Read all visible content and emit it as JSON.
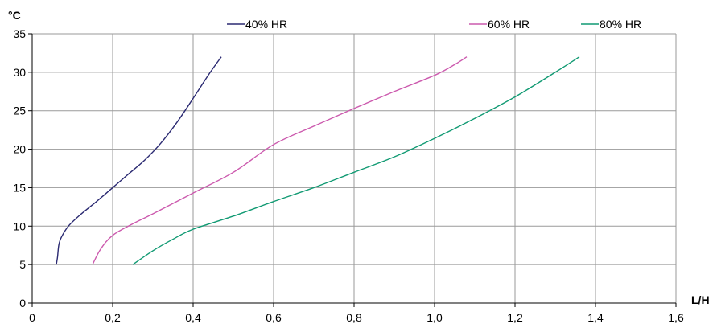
{
  "chart_data": {
    "type": "line",
    "title": "",
    "xlabel": "L/H",
    "ylabel": "°C",
    "xlim": [
      0,
      1.6
    ],
    "ylim": [
      0,
      35
    ],
    "x_ticks": [
      "0",
      "0,2",
      "0,4",
      "0,6",
      "0,8",
      "1,0",
      "1,2",
      "1,4",
      "1,6"
    ],
    "y_ticks": [
      "0",
      "5",
      "10",
      "15",
      "20",
      "25",
      "30",
      "35"
    ],
    "grid": true,
    "legend_position": "top",
    "series": [
      {
        "name": "40% HR",
        "color": "#2b2a72",
        "points": [
          [
            0.06,
            5
          ],
          [
            0.063,
            6
          ],
          [
            0.066,
            7.5
          ],
          [
            0.072,
            8.5
          ],
          [
            0.09,
            10
          ],
          [
            0.12,
            11.5
          ],
          [
            0.16,
            13.2
          ],
          [
            0.2,
            15
          ],
          [
            0.24,
            16.8
          ],
          [
            0.28,
            18.6
          ],
          [
            0.32,
            20.8
          ],
          [
            0.36,
            23.5
          ],
          [
            0.4,
            26.6
          ],
          [
            0.44,
            29.8
          ],
          [
            0.47,
            32
          ]
        ]
      },
      {
        "name": "60% HR",
        "color": "#cc5aae",
        "points": [
          [
            0.15,
            5
          ],
          [
            0.17,
            7
          ],
          [
            0.2,
            8.8
          ],
          [
            0.25,
            10.3
          ],
          [
            0.3,
            11.6
          ],
          [
            0.4,
            14.3
          ],
          [
            0.5,
            17
          ],
          [
            0.6,
            20.6
          ],
          [
            0.7,
            23
          ],
          [
            0.8,
            25.3
          ],
          [
            0.9,
            27.5
          ],
          [
            1.0,
            29.6
          ],
          [
            1.05,
            31
          ],
          [
            1.08,
            32
          ]
        ]
      },
      {
        "name": "80% HR",
        "color": "#119a73",
        "points": [
          [
            0.25,
            5
          ],
          [
            0.3,
            6.8
          ],
          [
            0.35,
            8.3
          ],
          [
            0.4,
            9.6
          ],
          [
            0.5,
            11.3
          ],
          [
            0.6,
            13.2
          ],
          [
            0.7,
            15
          ],
          [
            0.8,
            17
          ],
          [
            0.9,
            19
          ],
          [
            1.0,
            21.4
          ],
          [
            1.1,
            24
          ],
          [
            1.2,
            26.8
          ],
          [
            1.3,
            30
          ],
          [
            1.36,
            32
          ]
        ]
      }
    ]
  }
}
